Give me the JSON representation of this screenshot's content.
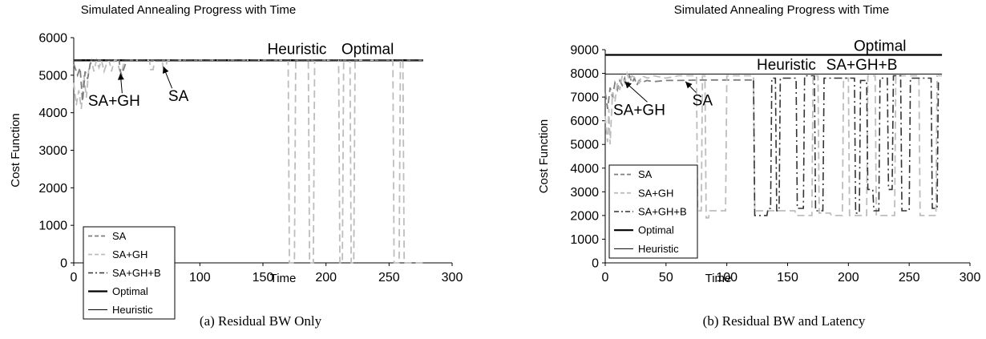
{
  "chart_data": [
    {
      "type": "line",
      "title": "Simulated Annealing Progress with Time",
      "xlabel": "Time",
      "ylabel": "Cost Function",
      "caption": "(a) Residual BW Only",
      "xlim": [
        0,
        300
      ],
      "ylim": [
        0,
        6000
      ],
      "xticks": [
        "0",
        "50",
        "100",
        "150",
        "200",
        "250",
        "300"
      ],
      "yticks": [
        "0",
        "1000",
        "2000",
        "3000",
        "4000",
        "5000",
        "6000"
      ],
      "legend": {
        "placement": "bottom-left",
        "entries": [
          "SA",
          "SA+GH",
          "SA+GH+B",
          "Optimal",
          "Heuristic"
        ]
      },
      "series": [
        {
          "name": "Optimal",
          "color": "#000000",
          "style": "solid-thick",
          "points": [
            [
              0,
              5400
            ],
            [
              277,
              5400
            ]
          ]
        },
        {
          "name": "Heuristic",
          "color": "#000000",
          "style": "solid-thin",
          "points": [
            [
              0,
              5380
            ],
            [
              277,
              5380
            ]
          ]
        },
        {
          "name": "SA+GH",
          "color": "#bdbdbd",
          "style": "dash",
          "points": [
            [
              0,
              4800
            ],
            [
              2,
              4200
            ],
            [
              4,
              4600
            ],
            [
              6,
              4100
            ],
            [
              8,
              5000
            ],
            [
              10,
              4400
            ],
            [
              12,
              5200
            ],
            [
              14,
              5400
            ],
            [
              16,
              5100
            ],
            [
              18,
              5400
            ],
            [
              20,
              5200
            ],
            [
              22,
              5400
            ],
            [
              24,
              5100
            ],
            [
              26,
              5300
            ],
            [
              28,
              5400
            ],
            [
              30,
              5100
            ],
            [
              32,
              5400
            ],
            [
              35,
              5400
            ],
            [
              36,
              5150
            ],
            [
              38,
              5050
            ],
            [
              40,
              5400
            ],
            [
              60,
              5400
            ],
            [
              61,
              5150
            ],
            [
              63,
              5150
            ],
            [
              64,
              5400
            ],
            [
              70,
              5400
            ],
            [
              71,
              5200
            ],
            [
              73,
              5200
            ],
            [
              74,
              5400
            ],
            [
              170,
              5400
            ],
            [
              171,
              0
            ],
            [
              175,
              0
            ],
            [
              176,
              5400
            ],
            [
              186,
              5400
            ],
            [
              187,
              0
            ],
            [
              190,
              0
            ],
            [
              191,
              5400
            ],
            [
              210,
              5400
            ],
            [
              211,
              0
            ],
            [
              213,
              0
            ],
            [
              214,
              5400
            ],
            [
              219,
              5400
            ],
            [
              220,
              0
            ],
            [
              222,
              0
            ],
            [
              223,
              5400
            ],
            [
              253,
              5400
            ],
            [
              254,
              0
            ],
            [
              258,
              0
            ],
            [
              259,
              5400
            ],
            [
              261,
              5400
            ],
            [
              262,
              0
            ],
            [
              277,
              0
            ]
          ]
        },
        {
          "name": "SA",
          "color": "#7d7d7d",
          "style": "dash",
          "points": [
            [
              0,
              5300
            ],
            [
              3,
              5000
            ],
            [
              5,
              5200
            ],
            [
              7,
              4300
            ],
            [
              9,
              5100
            ],
            [
              11,
              4900
            ],
            [
              13,
              5300
            ],
            [
              16,
              5400
            ],
            [
              36,
              5400
            ],
            [
              37,
              5100
            ],
            [
              38,
              5000
            ],
            [
              40,
              5200
            ],
            [
              42,
              5400
            ],
            [
              277,
              5400
            ]
          ]
        },
        {
          "name": "SA+GH+B",
          "color": "#333333",
          "style": "dashdot",
          "points": [
            [
              0,
              5400
            ],
            [
              277,
              5400
            ]
          ]
        }
      ],
      "annotations": [
        {
          "text": "SA+GH",
          "x": 37,
          "y": 5050,
          "label_x": 32,
          "label_y": 4180
        },
        {
          "text": "SA",
          "x": 71,
          "y": 5230,
          "label_x": 83,
          "label_y": 4310
        },
        {
          "text": "Heuristic",
          "x": 177,
          "y": 5560
        },
        {
          "text": "Optimal",
          "x": 233,
          "y": 5560
        }
      ]
    },
    {
      "type": "line",
      "title": "Simulated Annealing Progress with Time",
      "xlabel": "Time",
      "ylabel": "Cost Function",
      "caption": "(b) Residual BW and Latency",
      "xlim": [
        0,
        300
      ],
      "ylim": [
        0,
        9000
      ],
      "xticks": [
        "0",
        "50",
        "100",
        "150",
        "200",
        "250",
        "300"
      ],
      "yticks": [
        "0",
        "1000",
        "2000",
        "3000",
        "4000",
        "5000",
        "6000",
        "7000",
        "8000",
        "9000"
      ],
      "legend": {
        "placement": "bottom-left",
        "entries": [
          "SA",
          "SA+GH",
          "SA+GH+B",
          "Optimal",
          "Heuristic"
        ]
      },
      "series": [
        {
          "name": "Optimal",
          "color": "#000000",
          "style": "solid-thick",
          "points": [
            [
              0,
              8780
            ],
            [
              277,
              8780
            ]
          ]
        },
        {
          "name": "Heuristic",
          "color": "#000000",
          "style": "solid-thin",
          "points": [
            [
              0,
              7970
            ],
            [
              277,
              7970
            ]
          ]
        },
        {
          "name": "SA",
          "color": "#7d7d7d",
          "style": "dash",
          "points": [
            [
              0,
              7200
            ],
            [
              2,
              6500
            ],
            [
              4,
              7400
            ],
            [
              6,
              7000
            ],
            [
              8,
              7600
            ],
            [
              10,
              7300
            ],
            [
              12,
              7700
            ],
            [
              14,
              7500
            ],
            [
              16,
              7800
            ],
            [
              18,
              7400
            ],
            [
              20,
              7900
            ],
            [
              22,
              7600
            ],
            [
              24,
              7800
            ],
            [
              26,
              7500
            ],
            [
              28,
              7700
            ],
            [
              30,
              7600
            ],
            [
              34,
              7700
            ],
            [
              40,
              7650
            ],
            [
              50,
              7700
            ],
            [
              60,
              7700
            ],
            [
              80,
              7720
            ],
            [
              122,
              7720
            ]
          ]
        },
        {
          "name": "SA+GH",
          "color": "#bdbdbd",
          "style": "dash",
          "points": [
            [
              0,
              6200
            ],
            [
              1,
              5500
            ],
            [
              2,
              5100
            ],
            [
              3,
              6500
            ],
            [
              4,
              5000
            ],
            [
              5,
              6100
            ],
            [
              6,
              7200
            ],
            [
              8,
              6800
            ],
            [
              10,
              7600
            ],
            [
              12,
              7300
            ],
            [
              14,
              7900
            ],
            [
              16,
              7600
            ],
            [
              18,
              8000
            ],
            [
              20,
              7700
            ],
            [
              22,
              7900
            ],
            [
              25,
              7800
            ],
            [
              28,
              7600
            ],
            [
              30,
              7900
            ],
            [
              35,
              7800
            ],
            [
              40,
              7900
            ],
            [
              50,
              7800
            ],
            [
              60,
              7900
            ],
            [
              75,
              7900
            ],
            [
              76,
              2200
            ],
            [
              79,
              2200
            ],
            [
              80,
              7900
            ],
            [
              82,
              7900
            ],
            [
              83,
              1900
            ],
            [
              85,
              1900
            ],
            [
              86,
              2200
            ],
            [
              99,
              2200
            ],
            [
              100,
              7900
            ],
            [
              122,
              7900
            ],
            [
              123,
              2200
            ],
            [
              156,
              2200
            ],
            [
              157,
              2000
            ],
            [
              170,
              2000
            ],
            [
              171,
              7900
            ],
            [
              175,
              7900
            ],
            [
              176,
              2100
            ],
            [
              185,
              2100
            ],
            [
              186,
              2000
            ],
            [
              195,
              2000
            ],
            [
              196,
              7800
            ],
            [
              200,
              7800
            ],
            [
              201,
              2000
            ],
            [
              215,
              2000
            ],
            [
              216,
              7900
            ],
            [
              222,
              7900
            ],
            [
              223,
              2000
            ],
            [
              238,
              2000
            ],
            [
              239,
              7900
            ],
            [
              258,
              7900
            ],
            [
              259,
              2000
            ],
            [
              272,
              2000
            ],
            [
              273,
              7900
            ],
            [
              277,
              7900
            ]
          ]
        },
        {
          "name": "SA+GH+B",
          "color": "#333333",
          "style": "dashdot",
          "points": [
            [
              122,
              7700
            ],
            [
              123,
              2000
            ],
            [
              133,
              2000
            ],
            [
              134,
              2300
            ],
            [
              136,
              2300
            ],
            [
              137,
              7800
            ],
            [
              140,
              7800
            ],
            [
              141,
              2200
            ],
            [
              143,
              2200
            ],
            [
              144,
              7800
            ],
            [
              157,
              7800
            ],
            [
              158,
              2300
            ],
            [
              163,
              2300
            ],
            [
              164,
              7900
            ],
            [
              172,
              7900
            ],
            [
              173,
              2200
            ],
            [
              179,
              2200
            ],
            [
              180,
              7800
            ],
            [
              205,
              7800
            ],
            [
              206,
              2100
            ],
            [
              209,
              2100
            ],
            [
              210,
              7700
            ],
            [
              215,
              7700
            ],
            [
              216,
              3100
            ],
            [
              220,
              3100
            ],
            [
              221,
              2200
            ],
            [
              225,
              2200
            ],
            [
              226,
              7800
            ],
            [
              232,
              7800
            ],
            [
              233,
              3100
            ],
            [
              236,
              3100
            ],
            [
              237,
              7900
            ],
            [
              243,
              7900
            ],
            [
              244,
              2200
            ],
            [
              250,
              2200
            ],
            [
              251,
              7800
            ],
            [
              268,
              7800
            ],
            [
              269,
              2300
            ],
            [
              273,
              2300
            ],
            [
              274,
              7600
            ],
            [
              277,
              7600
            ]
          ]
        }
      ],
      "annotations": [
        {
          "text": "SA+GH",
          "x": 16,
          "y": 7650,
          "label_x": 28,
          "label_y": 6250
        },
        {
          "text": "SA",
          "x": 66,
          "y": 7650,
          "label_x": 80,
          "label_y": 6650
        },
        {
          "text": "Optimal",
          "x": 226,
          "y": 8950
        },
        {
          "text": "Heuristic",
          "x": 149,
          "y": 8150
        },
        {
          "text": "SA+GH+B",
          "x": 211,
          "y": 8150
        }
      ]
    }
  ]
}
